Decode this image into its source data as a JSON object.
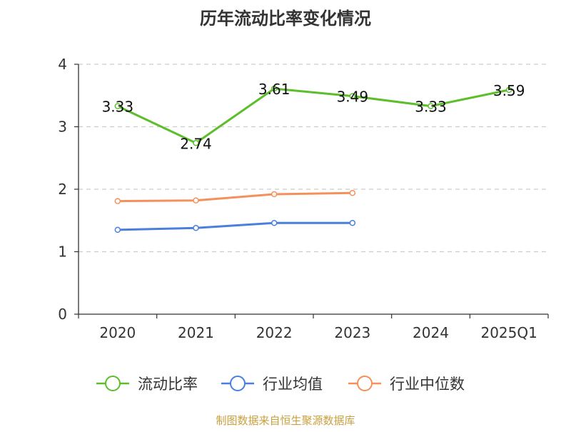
{
  "chart_data": {
    "type": "line",
    "title": "历年流动比率变化情况",
    "categories": [
      "2020",
      "2021",
      "2022",
      "2023",
      "2024",
      "2025Q1"
    ],
    "series": [
      {
        "name": "流动比率",
        "color": "#5dbe2b",
        "values": [
          3.33,
          2.74,
          3.61,
          3.49,
          3.33,
          3.59
        ],
        "labels": [
          "3.33",
          "2.74",
          "3.61",
          "3.49",
          "3.33",
          "3.59"
        ]
      },
      {
        "name": "行业均值",
        "color": "#4a7fdb",
        "values": [
          1.35,
          1.38,
          1.46,
          1.46,
          null,
          null
        ]
      },
      {
        "name": "行业中位数",
        "color": "#f5905a",
        "values": [
          1.81,
          1.82,
          1.92,
          1.94,
          null,
          null
        ]
      }
    ],
    "ylim": [
      0,
      4
    ],
    "yticks": [
      "0",
      "1",
      "2",
      "3",
      "4"
    ],
    "grid": true,
    "legend_position": "bottom"
  },
  "source": "制图数据来自恒生聚源数据库"
}
